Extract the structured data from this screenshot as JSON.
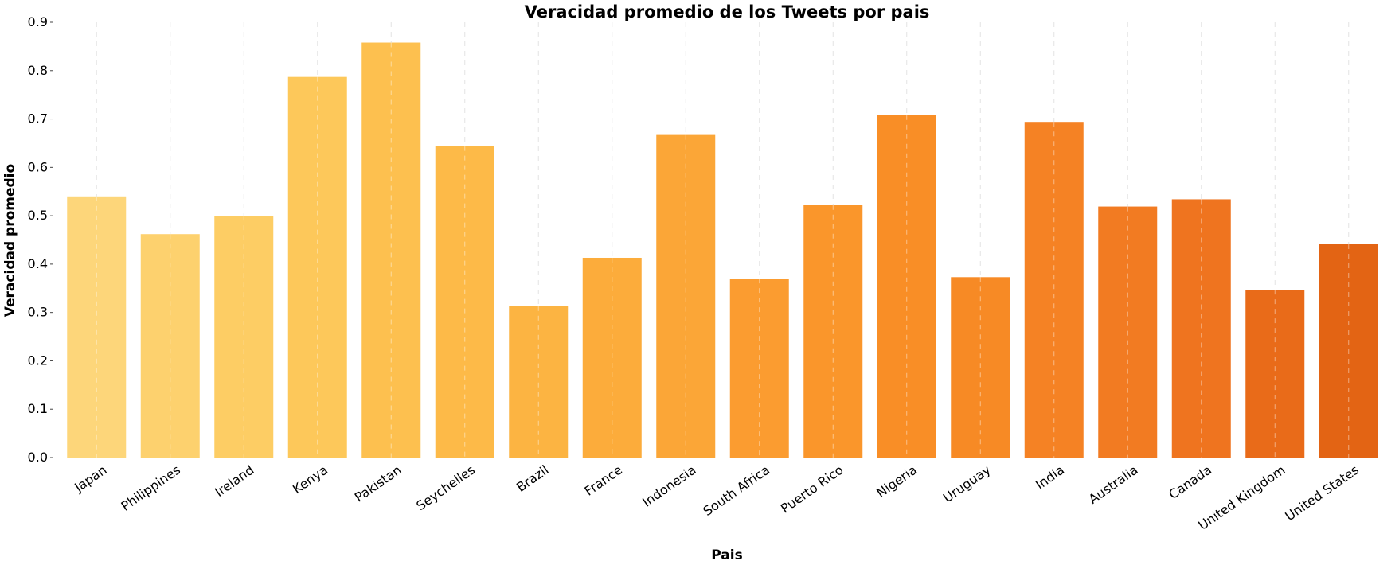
{
  "chart_data": {
    "type": "bar",
    "title": "Veracidad promedio de los Tweets por pais",
    "xlabel": "Pais",
    "ylabel": "Veracidad promedio",
    "ylim": [
      0,
      0.9
    ],
    "yticks": [
      "0.0",
      "0.1",
      "0.2",
      "0.3",
      "0.4",
      "0.5",
      "0.6",
      "0.7",
      "0.8",
      "0.9"
    ],
    "grid": "vertical dashed",
    "categories": [
      "Japan",
      "Philippines",
      "Ireland",
      "Kenya",
      "Pakistan",
      "Seychelles",
      "Brazil",
      "France",
      "Indonesia",
      "South Africa",
      "Puerto Rico",
      "Nigeria",
      "Uruguay",
      "India",
      "Australia",
      "Canada",
      "United Kingdom",
      "United States"
    ],
    "values": [
      0.54,
      0.462,
      0.5,
      0.787,
      0.858,
      0.644,
      0.313,
      0.413,
      0.667,
      0.37,
      0.522,
      0.708,
      0.373,
      0.694,
      0.519,
      0.534,
      0.347,
      0.441
    ],
    "colors": [
      "#fdd67a",
      "#fdd16e",
      "#fdcd64",
      "#fdc85a",
      "#fdc04f",
      "#fdba48",
      "#fcb442",
      "#fcac3b",
      "#fba637",
      "#fb9c30",
      "#fa962b",
      "#f98e26",
      "#f78a25",
      "#f58224",
      "#f27b22",
      "#ef741f",
      "#e96b19",
      "#e36414"
    ]
  }
}
